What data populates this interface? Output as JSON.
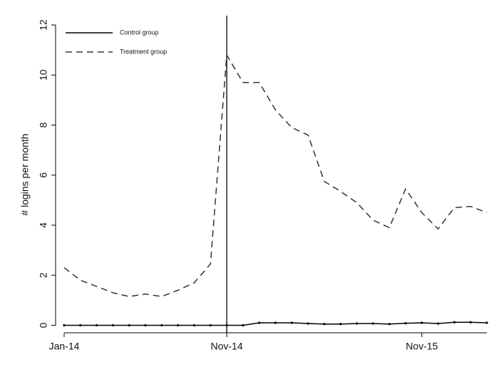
{
  "chart_data": {
    "type": "line",
    "y_label": "# logins per month",
    "categories": [
      "Jan-14",
      null,
      null,
      null,
      null,
      null,
      null,
      null,
      null,
      null,
      "Nov-14",
      null,
      null,
      null,
      null,
      null,
      null,
      null,
      null,
      null,
      null,
      null,
      "Nov-15",
      null,
      null,
      null,
      null
    ],
    "series": [
      {
        "name": "Control group",
        "color": "#000000",
        "dash": "solid",
        "values": [
          0,
          0,
          0,
          0,
          0,
          0,
          0,
          0,
          0,
          0,
          0,
          0,
          0.1,
          0.1,
          0.1,
          0.07,
          0.05,
          0.05,
          0.07,
          0.07,
          0.05,
          0.08,
          0.1,
          0.07,
          0.12,
          0.12,
          0.1
        ]
      },
      {
        "name": "Treatment group",
        "color": "#333333",
        "dash": "dashed",
        "values": [
          2.3,
          1.8,
          1.55,
          1.3,
          1.15,
          1.25,
          1.15,
          1.4,
          1.7,
          2.45,
          10.8,
          9.7,
          9.7,
          8.6,
          7.9,
          7.6,
          5.75,
          5.35,
          4.9,
          4.2,
          3.9,
          5.45,
          4.5,
          3.85,
          4.7,
          4.75,
          4.5
        ]
      }
    ],
    "vline": "Nov-14",
    "ylim": [
      -0.3,
      12.3
    ],
    "yticks": [
      0,
      2,
      4,
      6,
      8,
      10,
      12
    ],
    "legend": "top-left",
    "grid": false
  }
}
